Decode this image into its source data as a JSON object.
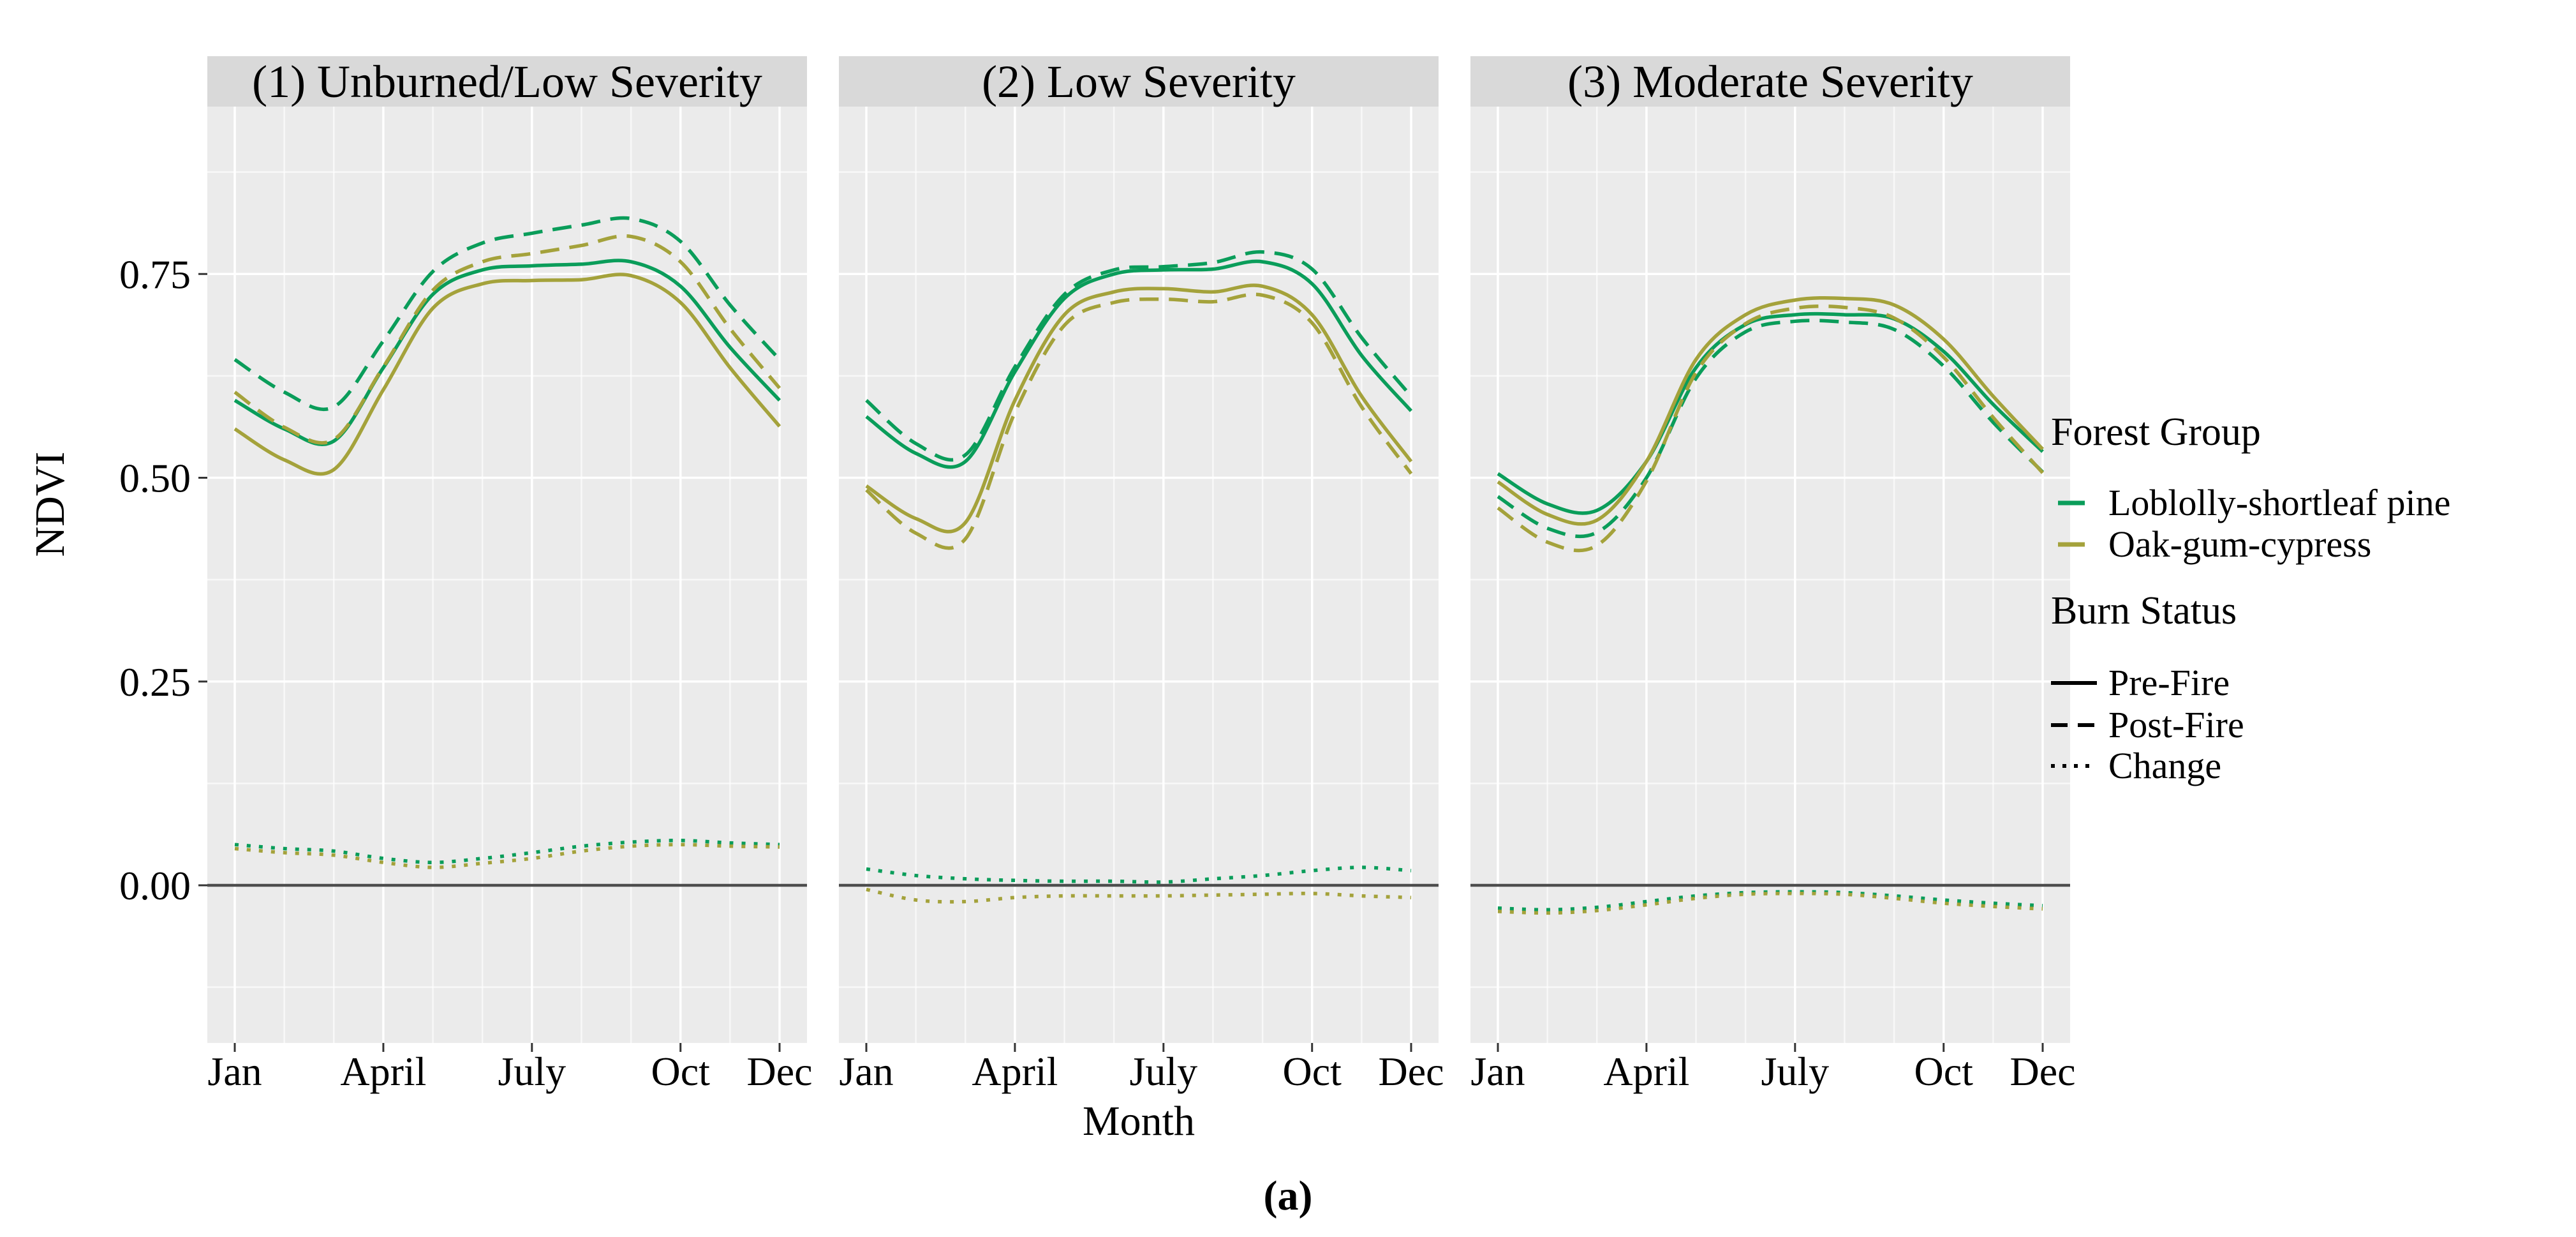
{
  "figure": {
    "caption": "(a)"
  },
  "axes": {
    "y_label": "NDVI",
    "x_label": "Month",
    "y_tick_labels": [
      "0.00",
      "0.25",
      "0.50",
      "0.75"
    ],
    "x_tick_labels": [
      "Jan",
      "April",
      "July",
      "Oct",
      "Dec"
    ]
  },
  "legend": {
    "forest_group": {
      "title": "Forest Group",
      "items": [
        {
          "label": "Loblolly-shortleaf pine",
          "color_key": "pine_green"
        },
        {
          "label": "Oak-gum-cypress",
          "color_key": "cypress_olive"
        }
      ]
    },
    "burn_status": {
      "title": "Burn Status",
      "items": [
        {
          "label": "Pre-Fire",
          "linetype": "solid"
        },
        {
          "label": "Post-Fire",
          "linetype": "dashed"
        },
        {
          "label": "Change",
          "linetype": "dotted"
        }
      ]
    }
  },
  "colors": {
    "pine_green": "#0a9d5a",
    "cypress_olive": "#a4a23b",
    "panel_background": "#ebebeb",
    "strip_background": "#d9d9d9",
    "gridline": "#ffffff",
    "zero_line": "#4d4d4d",
    "tick_mark": "#333333"
  },
  "chart_data": {
    "type": "line",
    "xlabel": "Month",
    "ylabel": "NDVI",
    "x_values": [
      1,
      2,
      3,
      4,
      5,
      6,
      7,
      8,
      9,
      10,
      11,
      12
    ],
    "x_break_positions": [
      1,
      4,
      7,
      10,
      12
    ],
    "x_break_labels": [
      "Jan",
      "April",
      "July",
      "Oct",
      "Dec"
    ],
    "y_tick_values": [
      0.0,
      0.25,
      0.5,
      0.75
    ],
    "y_minor_tick_values": [
      0.875,
      0.625,
      0.375,
      0.125,
      -0.125
    ],
    "ylim": [
      -0.193,
      0.955
    ],
    "grid": "on",
    "legend_position": "right",
    "zero_reference_line": 0.0,
    "panels": [
      {
        "title": "(1) Unburned/Low Severity",
        "series": [
          {
            "forest_group": "Loblolly-shortleaf pine",
            "burn_status": "Pre-Fire",
            "values": [
              0.595,
              0.56,
              0.545,
              0.635,
              0.725,
              0.755,
              0.76,
              0.762,
              0.765,
              0.735,
              0.66,
              0.595
            ]
          },
          {
            "forest_group": "Loblolly-shortleaf pine",
            "burn_status": "Post-Fire",
            "values": [
              0.645,
              0.605,
              0.587,
              0.668,
              0.753,
              0.788,
              0.8,
              0.81,
              0.818,
              0.79,
              0.712,
              0.645
            ]
          },
          {
            "forest_group": "Loblolly-shortleaf pine",
            "burn_status": "Change",
            "values": [
              0.05,
              0.045,
              0.042,
              0.033,
              0.028,
              0.033,
              0.04,
              0.048,
              0.053,
              0.055,
              0.052,
              0.05
            ]
          },
          {
            "forest_group": "Oak-gum-cypress",
            "burn_status": "Pre-Fire",
            "values": [
              0.56,
              0.522,
              0.51,
              0.608,
              0.708,
              0.738,
              0.742,
              0.743,
              0.748,
              0.715,
              0.635,
              0.563
            ]
          },
          {
            "forest_group": "Oak-gum-cypress",
            "burn_status": "Post-Fire",
            "values": [
              0.605,
              0.562,
              0.547,
              0.636,
              0.73,
              0.765,
              0.775,
              0.785,
              0.796,
              0.765,
              0.683,
              0.61
            ]
          },
          {
            "forest_group": "Oak-gum-cypress",
            "burn_status": "Change",
            "values": [
              0.045,
              0.04,
              0.037,
              0.028,
              0.022,
              0.027,
              0.033,
              0.042,
              0.048,
              0.05,
              0.048,
              0.047
            ]
          }
        ]
      },
      {
        "title": "(2) Low Severity",
        "series": [
          {
            "forest_group": "Loblolly-shortleaf pine",
            "burn_status": "Pre-Fire",
            "values": [
              0.575,
              0.53,
              0.52,
              0.63,
              0.72,
              0.75,
              0.755,
              0.756,
              0.765,
              0.738,
              0.65,
              0.582
            ]
          },
          {
            "forest_group": "Loblolly-shortleaf pine",
            "burn_status": "Post-Fire",
            "values": [
              0.595,
              0.542,
              0.528,
              0.636,
              0.725,
              0.755,
              0.759,
              0.764,
              0.777,
              0.756,
              0.672,
              0.6
            ]
          },
          {
            "forest_group": "Loblolly-shortleaf pine",
            "burn_status": "Change",
            "values": [
              0.02,
              0.012,
              0.008,
              0.006,
              0.005,
              0.005,
              0.004,
              0.008,
              0.012,
              0.018,
              0.022,
              0.018
            ]
          },
          {
            "forest_group": "Oak-gum-cypress",
            "burn_status": "Pre-Fire",
            "values": [
              0.49,
              0.45,
              0.445,
              0.595,
              0.7,
              0.728,
              0.732,
              0.728,
              0.735,
              0.7,
              0.6,
              0.52
            ]
          },
          {
            "forest_group": "Oak-gum-cypress",
            "burn_status": "Post-Fire",
            "values": [
              0.485,
              0.432,
              0.425,
              0.58,
              0.687,
              0.715,
              0.719,
              0.716,
              0.724,
              0.69,
              0.587,
              0.505
            ]
          },
          {
            "forest_group": "Oak-gum-cypress",
            "burn_status": "Change",
            "values": [
              -0.005,
              -0.018,
              -0.02,
              -0.015,
              -0.013,
              -0.013,
              -0.013,
              -0.012,
              -0.011,
              -0.01,
              -0.013,
              -0.015
            ]
          }
        ]
      },
      {
        "title": "(3) Moderate Severity",
        "series": [
          {
            "forest_group": "Loblolly-shortleaf pine",
            "burn_status": "Pre-Fire",
            "values": [
              0.505,
              0.468,
              0.46,
              0.52,
              0.635,
              0.688,
              0.7,
              0.7,
              0.695,
              0.655,
              0.59,
              0.532
            ]
          },
          {
            "forest_group": "Loblolly-shortleaf pine",
            "burn_status": "Post-Fire",
            "values": [
              0.477,
              0.438,
              0.433,
              0.5,
              0.622,
              0.679,
              0.692,
              0.691,
              0.682,
              0.637,
              0.568,
              0.507
            ]
          },
          {
            "forest_group": "Loblolly-shortleaf pine",
            "burn_status": "Change",
            "values": [
              -0.028,
              -0.03,
              -0.027,
              -0.02,
              -0.013,
              -0.009,
              -0.008,
              -0.009,
              -0.013,
              -0.018,
              -0.022,
              -0.025
            ]
          },
          {
            "forest_group": "Oak-gum-cypress",
            "burn_status": "Pre-Fire",
            "values": [
              0.495,
              0.455,
              0.448,
              0.52,
              0.645,
              0.7,
              0.718,
              0.72,
              0.712,
              0.67,
              0.6,
              0.535
            ]
          },
          {
            "forest_group": "Oak-gum-cypress",
            "burn_status": "Post-Fire",
            "values": [
              0.463,
              0.421,
              0.417,
              0.496,
              0.629,
              0.689,
              0.708,
              0.709,
              0.696,
              0.648,
              0.574,
              0.506
            ]
          },
          {
            "forest_group": "Oak-gum-cypress",
            "burn_status": "Change",
            "values": [
              -0.032,
              -0.034,
              -0.031,
              -0.024,
              -0.016,
              -0.011,
              -0.01,
              -0.011,
              -0.016,
              -0.022,
              -0.026,
              -0.029
            ]
          }
        ]
      }
    ]
  }
}
